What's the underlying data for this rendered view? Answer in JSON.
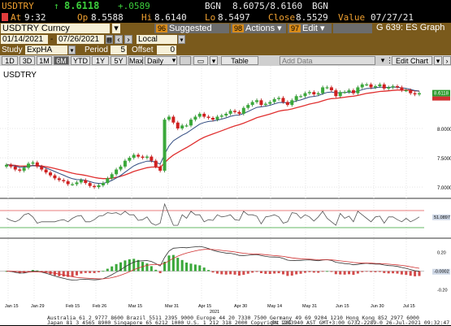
{
  "quote": {
    "ticker": "USDTRY",
    "last": "8.6118",
    "change": "+.0589",
    "bgn": "BGN",
    "bid_ask": "8.6075/8.6160",
    "bgn2": "BGN",
    "at_label": "At",
    "at_time": "9:32",
    "op_label": "Op",
    "op": "8.5588",
    "hi_label": "Hi",
    "hi": "8.6140",
    "lo_label": "Lo",
    "lo": "8.5497",
    "close_label": "Close",
    "close": "8.5529",
    "value_label": "Value",
    "value_date": "07/27/21"
  },
  "toolbar": {
    "security": "USDTRY Curncy",
    "suggested_num": "96",
    "suggested_label": "Suggested Charts",
    "actions_num": "98",
    "actions_label": "Actions",
    "edit_num": "97",
    "edit_label": "Edit",
    "graph_label": "G 639: ES Graph"
  },
  "range": {
    "start": "01/14/2021",
    "end": "07/26/2021",
    "currency": "Local CCY"
  },
  "study": {
    "label": "Study",
    "value": "ExpHA",
    "period_label": "Period",
    "period": "5",
    "offset_label": "Offset",
    "offset": "0"
  },
  "periods": {
    "items": [
      "1D",
      "3D",
      "1M",
      "6M",
      "YTD",
      "1Y",
      "5Y",
      "Max"
    ],
    "active": "6M",
    "frequency": "Daily",
    "table_label": "Table",
    "add_data_placeholder": "Add Data",
    "edit_chart_label": "Edit Chart"
  },
  "chart_data": {
    "type": "candlestick",
    "title": "USDTRY",
    "yticks": [
      "8.0000",
      "7.5000",
      "7.0000"
    ],
    "last_label": "8.6118",
    "rsi_label": "51.0897",
    "macd_ticks": [
      "0.20",
      "0.00",
      "-0.20"
    ],
    "macd_label": "-0.0002",
    "xticks": [
      "Jan 15",
      "Jan 29",
      "Feb 15",
      "Feb 26",
      "Mar 15",
      "Mar 31",
      "Apr 15",
      "Apr 30",
      "May 14",
      "May 31",
      "Jun 15",
      "Jun 30",
      "Jul 15"
    ],
    "year_label": "2021",
    "closes": [
      7.38,
      7.35,
      7.3,
      7.28,
      7.33,
      7.4,
      7.42,
      7.35,
      7.3,
      7.25,
      7.2,
      7.15,
      7.12,
      7.1,
      7.05,
      7.05,
      7.08,
      7.12,
      7.07,
      7.02,
      7.0,
      7.03,
      7.07,
      7.15,
      7.22,
      7.3,
      7.35,
      7.45,
      7.5,
      7.55,
      7.52,
      7.5,
      7.52,
      7.45,
      7.35,
      7.28,
      8.15,
      8.2,
      8.1,
      8.0,
      8.05,
      8.05,
      8.15,
      8.2,
      8.25,
      8.2,
      8.18,
      8.15,
      8.2,
      8.22,
      8.25,
      8.3,
      8.28,
      8.25,
      8.35,
      8.4,
      8.45,
      8.48,
      8.4,
      8.42,
      8.45,
      8.5,
      8.52,
      8.45,
      8.4,
      8.48,
      8.55,
      8.55,
      8.6,
      8.62,
      8.58,
      8.6,
      8.7,
      8.7,
      8.65,
      8.55,
      8.62,
      8.62,
      8.65,
      8.6,
      8.7,
      8.75,
      8.75,
      8.7,
      8.72,
      8.75,
      8.68,
      8.7,
      8.72,
      8.7,
      8.65,
      8.65,
      8.6,
      8.58,
      8.6
    ]
  },
  "footer": {
    "line1": "Australia 61 2 9777 8600 Brazil 5511 2395 9000 Europe 44 20 7330 7500 Germany 49 69 9204 1210 Hong Kong 852 2977 6000",
    "line2": "Japan 81 3 4565 8900        Singapore 65 6212 1000        U.S. 1 212 318 2000        Copyright 2021 Bloomberg Finance L.P.",
    "line3": "SN 1283940 AST  GMT+3:00 G732-2289-0 26-Jul-2021 09:32:47"
  }
}
